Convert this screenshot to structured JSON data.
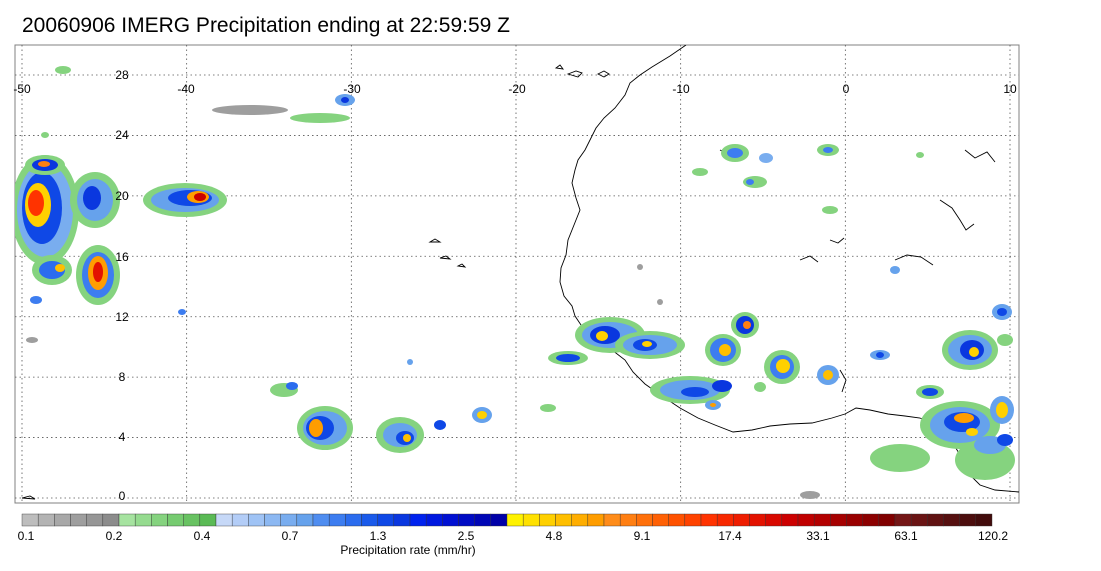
{
  "title": "20060906 IMERG Precipitation ending at 22:59:59 Z",
  "map": {
    "lon_range": [
      -50,
      10
    ],
    "lat_range": [
      0,
      30
    ],
    "lon_ticks": [
      "-50",
      "-40",
      "-30",
      "-20",
      "-10",
      "0",
      "10"
    ],
    "lat_ticks": [
      "28",
      "24",
      "20",
      "16",
      "12",
      "8",
      "4",
      "0"
    ],
    "grid": "dotted",
    "coastline_color": "#000000"
  },
  "colorbar": {
    "label": "Precipitation rate (mm/hr)",
    "tick_labels": [
      "0.1",
      "0.2",
      "0.4",
      "0.7",
      "1.3",
      "2.5",
      "4.8",
      "9.1",
      "17.4",
      "33.1",
      "63.1",
      "120.2"
    ],
    "colors": [
      "#bdbdbd",
      "#b3b3b3",
      "#a8a8a8",
      "#9e9e9e",
      "#969696",
      "#8c8c8c",
      "#a6e3a0",
      "#95db8f",
      "#85d37f",
      "#76cb70",
      "#68c262",
      "#5aba55",
      "#c6d8f7",
      "#b3cdf7",
      "#9fc3f5",
      "#8cb8f2",
      "#79adef",
      "#66a2ec",
      "#4f8df0",
      "#3d7df0",
      "#2b6cee",
      "#1a5aea",
      "#0f48e6",
      "#0a37df",
      "#0022ee",
      "#0018e0",
      "#0010d2",
      "#000bc4",
      "#0006b6",
      "#0000a8",
      "#fff200",
      "#ffe100",
      "#ffd000",
      "#ffbf00",
      "#ffae00",
      "#ff9d00",
      "#ff8c1a",
      "#ff7f12",
      "#ff700a",
      "#ff6105",
      "#ff5200",
      "#ff4300",
      "#ff3300",
      "#f72800",
      "#ee1d00",
      "#e31200",
      "#d80800",
      "#cc0000",
      "#c00000",
      "#b30000",
      "#a60000",
      "#990000",
      "#8c0000",
      "#800000",
      "#741616",
      "#6a1414",
      "#601212",
      "#561010",
      "#4c0e0e",
      "#420c0c"
    ]
  }
}
